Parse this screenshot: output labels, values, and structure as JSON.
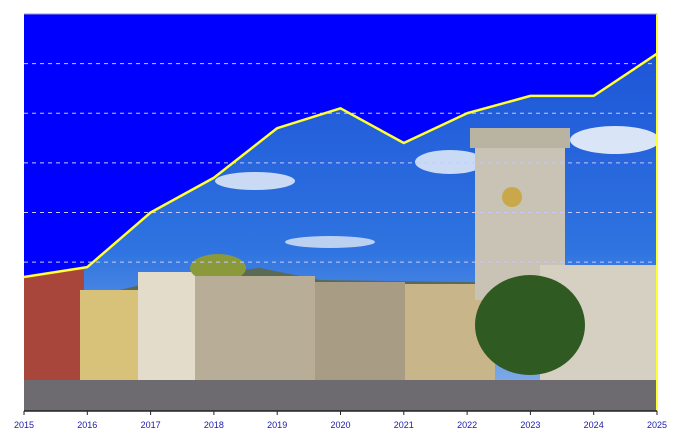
{
  "chart_data": {
    "type": "area",
    "title": "",
    "xlabel": "",
    "ylabel": "",
    "x": [
      2015,
      2016,
      2017,
      2018,
      2019,
      2020,
      2021,
      2022,
      2023,
      2024,
      2025
    ],
    "series": [
      {
        "values": [
          2.7,
          2.9,
          4.0,
          4.7,
          5.7,
          6.1,
          5.4,
          6.0,
          6.35,
          6.35,
          7.2
        ]
      }
    ],
    "xlim": [
      2015,
      2025
    ],
    "ylim": [
      0,
      8
    ],
    "y_gridlines": [
      3,
      4,
      5,
      6,
      7
    ],
    "grid": "horizontal dashed",
    "x_tick_labels": [
      "2015",
      "2016",
      "2017",
      "2018",
      "2019",
      "2020",
      "2021",
      "2022",
      "2023",
      "2024",
      "2025"
    ],
    "y_tick_labels_shown": false,
    "background": "photograph of a city square with a clock tower, visible below the line",
    "colors": {
      "fill_above_line": "#0000ff",
      "line": "#ffff33",
      "tick_labels": "#1a1aa8",
      "gridlines": "#c8c8ff"
    }
  }
}
